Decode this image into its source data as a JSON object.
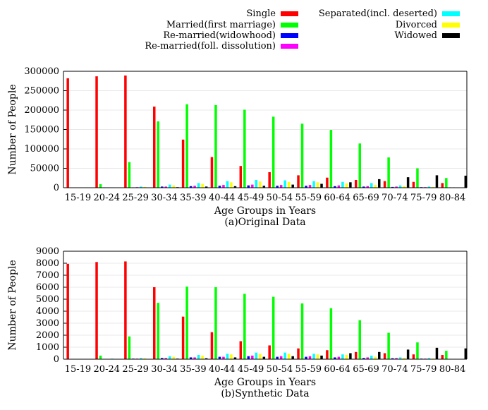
{
  "legend": {
    "entries": [
      {
        "name": "Single",
        "color": "#ff0000"
      },
      {
        "name": "Married(first marriage)",
        "color": "#00ff00"
      },
      {
        "name": "Re-married(widowhood)",
        "color": "#0000ff"
      },
      {
        "name": "Re-married(foll. dissolution)",
        "color": "#ff00ff"
      },
      {
        "name": "Separated(incl. deserted)",
        "color": "#00ffff"
      },
      {
        "name": "Divorced",
        "color": "#ffff00"
      },
      {
        "name": "Widowed",
        "color": "#000000"
      }
    ]
  },
  "chart_data": [
    {
      "type": "bar",
      "caption": "(a)Original Data",
      "xlabel": "Age Groups in Years",
      "ylabel": "Number of People",
      "ylim": [
        0,
        300000
      ],
      "yticks": [
        0,
        50000,
        100000,
        150000,
        200000,
        250000,
        300000
      ],
      "grid": true,
      "categories": [
        "15-19",
        "20-24",
        "25-29",
        "30-34",
        "35-39",
        "40-44",
        "45-49",
        "50-54",
        "55-59",
        "60-64",
        "65-69",
        "70-74",
        "75-79",
        "80-84"
      ],
      "series": [
        {
          "name": "Single",
          "values": [
            282000,
            287000,
            289000,
            209000,
            124000,
            79000,
            56000,
            40000,
            32000,
            26000,
            20000,
            17000,
            15000,
            12000
          ]
        },
        {
          "name": "Married(first marriage)",
          "values": [
            0,
            9000,
            66000,
            171000,
            215000,
            213000,
            201000,
            183000,
            165000,
            149000,
            114000,
            78000,
            50000,
            25000
          ]
        },
        {
          "name": "Re-married(widowhood)",
          "values": [
            0,
            1000,
            1000,
            3000,
            4000,
            5000,
            6000,
            5000,
            5000,
            4000,
            3000,
            2000,
            1500,
            1000
          ]
        },
        {
          "name": "Re-married(foll. dissolution)",
          "values": [
            0,
            1000,
            1500,
            3000,
            5000,
            7000,
            8000,
            7000,
            7000,
            6000,
            4000,
            3000,
            1500,
            1000
          ]
        },
        {
          "name": "Separated(incl. deserted)",
          "values": [
            500,
            1000,
            3000,
            8000,
            12000,
            17000,
            20000,
            19000,
            17000,
            15000,
            12000,
            6000,
            3000,
            1000
          ]
        },
        {
          "name": "Divorced",
          "values": [
            0,
            500,
            2000,
            6000,
            10000,
            14000,
            16000,
            15000,
            14000,
            11000,
            7000,
            4000,
            2000,
            1000
          ]
        },
        {
          "name": "Widowed",
          "values": [
            0,
            200,
            500,
            1500,
            3000,
            4000,
            5000,
            8000,
            10000,
            14000,
            22000,
            27000,
            32000,
            31000
          ]
        }
      ]
    },
    {
      "type": "bar",
      "caption": "(b)Synthetic Data",
      "xlabel": "Age Groups in Years",
      "ylabel": "Number of People",
      "ylim": [
        0,
        9000
      ],
      "yticks": [
        0,
        1000,
        2000,
        3000,
        4000,
        5000,
        6000,
        7000,
        8000,
        9000
      ],
      "grid": true,
      "categories": [
        "15-19",
        "20-24",
        "25-29",
        "30-34",
        "35-39",
        "40-44",
        "45-49",
        "50-54",
        "55-59",
        "60-64",
        "65-69",
        "70-74",
        "75-79",
        "80-84"
      ],
      "series": [
        {
          "name": "Single",
          "values": [
            7950,
            8100,
            8150,
            6000,
            3550,
            2250,
            1500,
            1150,
            900,
            750,
            600,
            500,
            400,
            350
          ]
        },
        {
          "name": "Married(first marriage)",
          "values": [
            0,
            300,
            1900,
            4700,
            6050,
            6000,
            5450,
            5200,
            4650,
            4250,
            3250,
            2200,
            1400,
            700
          ]
        },
        {
          "name": "Re-married(widowhood)",
          "values": [
            0,
            20,
            50,
            100,
            150,
            200,
            250,
            200,
            200,
            150,
            100,
            80,
            50,
            30
          ]
        },
        {
          "name": "Re-married(foll. dissolution)",
          "values": [
            0,
            20,
            50,
            100,
            150,
            200,
            300,
            250,
            250,
            200,
            150,
            100,
            50,
            30
          ]
        },
        {
          "name": "Separated(incl. deserted)",
          "values": [
            20,
            50,
            100,
            250,
            350,
            450,
            550,
            550,
            450,
            400,
            300,
            150,
            100,
            30
          ]
        },
        {
          "name": "Divorced",
          "values": [
            0,
            20,
            80,
            200,
            300,
            400,
            450,
            450,
            400,
            350,
            200,
            120,
            60,
            30
          ]
        },
        {
          "name": "Widowed",
          "values": [
            0,
            10,
            20,
            50,
            80,
            150,
            200,
            250,
            300,
            500,
            600,
            800,
            950,
            900
          ]
        }
      ]
    }
  ]
}
